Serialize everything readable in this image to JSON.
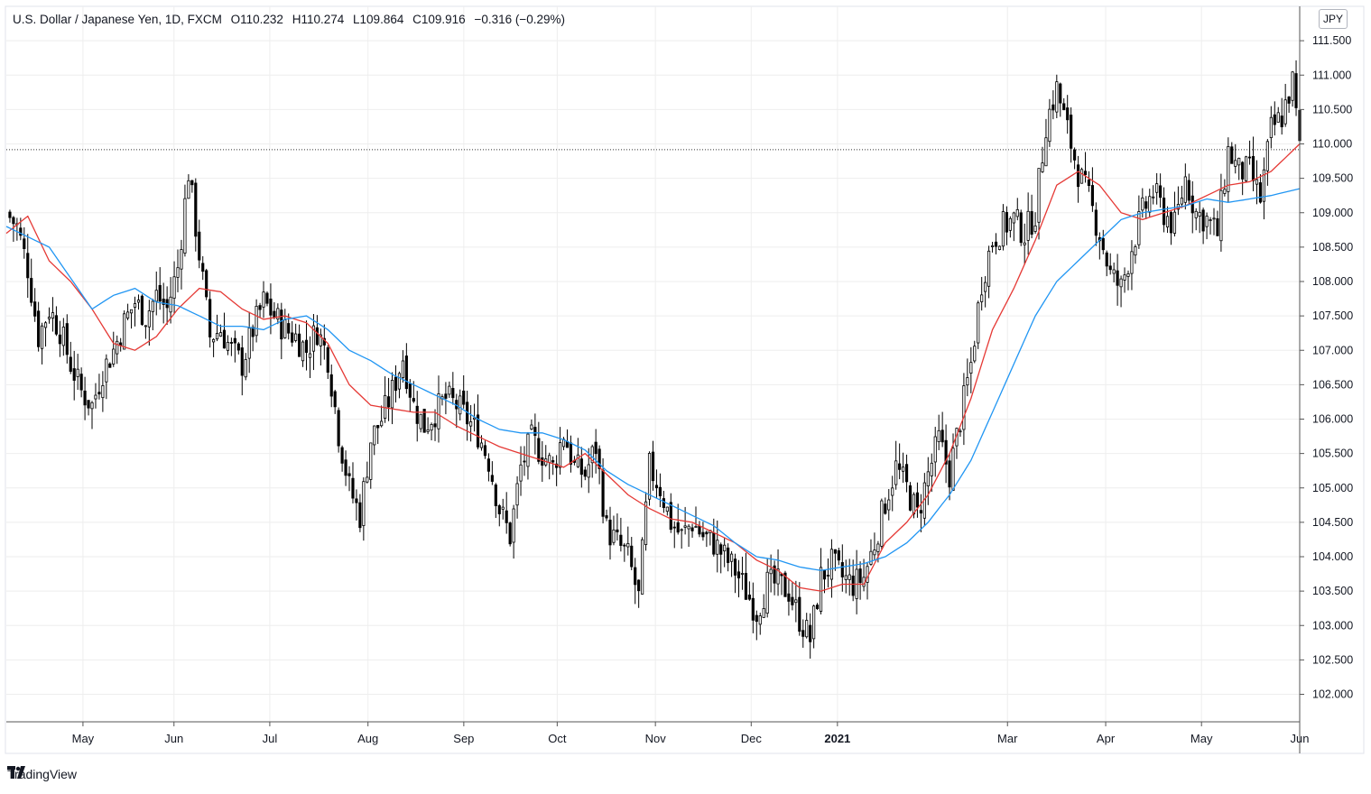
{
  "legend": {
    "symbol": "U.S. Dollar / Japanese Yen, 1D, FXCM",
    "open": "O110.232",
    "high": "H110.274",
    "low": "L109.864",
    "close": "C109.916",
    "change": "−0.316 (−0.29%)"
  },
  "currency_badge": "JPY",
  "brand": "TradingView",
  "colors": {
    "up_candle": "#ffffff",
    "down_candle": "#000000",
    "wick": "#000000",
    "ma_fast": "#e53935",
    "ma_slow": "#2196f3",
    "grid": "#eeeeee",
    "axis": "#555555",
    "last_price_line": "#333333"
  },
  "chart_data": {
    "type": "line",
    "symbol": "USDJPY",
    "interval": "1D",
    "ylim": [
      101.6,
      112.0
    ],
    "y_ticks": [
      "102.000",
      "102.500",
      "103.000",
      "103.500",
      "104.000",
      "104.500",
      "105.000",
      "105.500",
      "106.000",
      "106.500",
      "107.000",
      "107.500",
      "108.000",
      "108.500",
      "109.000",
      "109.500",
      "110.000",
      "110.500",
      "111.000",
      "111.500"
    ],
    "x_ticks": [
      {
        "label": "May",
        "bold": false
      },
      {
        "label": "Jun",
        "bold": false
      },
      {
        "label": "Jul",
        "bold": false
      },
      {
        "label": "Aug",
        "bold": false
      },
      {
        "label": "Sep",
        "bold": false
      },
      {
        "label": "Oct",
        "bold": false
      },
      {
        "label": "Nov",
        "bold": false
      },
      {
        "label": "Dec",
        "bold": false
      },
      {
        "label": "2021",
        "bold": true
      },
      {
        "label": "Mar",
        "bold": false
      },
      {
        "label": "Apr",
        "bold": false
      },
      {
        "label": "May",
        "bold": false
      },
      {
        "label": "Jun",
        "bold": false
      }
    ],
    "last_price": 109.916,
    "grid": true,
    "close_path": [
      [
        0,
        109.0
      ],
      [
        3,
        108.8
      ],
      [
        6,
        108.2
      ],
      [
        9,
        107.2
      ],
      [
        12,
        107.6
      ],
      [
        15,
        107.3
      ],
      [
        18,
        106.8
      ],
      [
        21,
        106.4
      ],
      [
        24,
        106.2
      ],
      [
        27,
        106.7
      ],
      [
        30,
        107.0
      ],
      [
        33,
        107.4
      ],
      [
        36,
        107.7
      ],
      [
        39,
        107.5
      ],
      [
        42,
        107.8
      ],
      [
        45,
        107.6
      ],
      [
        48,
        108.2
      ],
      [
        51,
        109.6
      ],
      [
        54,
        108.4
      ],
      [
        57,
        107.2
      ],
      [
        60,
        107.3
      ],
      [
        63,
        107.0
      ],
      [
        66,
        106.8
      ],
      [
        69,
        107.3
      ],
      [
        72,
        107.7
      ],
      [
        75,
        107.5
      ],
      [
        78,
        107.3
      ],
      [
        81,
        107.2
      ],
      [
        84,
        107.0
      ],
      [
        87,
        107.3
      ],
      [
        90,
        106.9
      ],
      [
        93,
        105.8
      ],
      [
        96,
        105.0
      ],
      [
        99,
        104.6
      ],
      [
        102,
        105.7
      ],
      [
        105,
        106.0
      ],
      [
        108,
        106.4
      ],
      [
        111,
        106.9
      ],
      [
        114,
        106.2
      ],
      [
        117,
        105.9
      ],
      [
        120,
        106.1
      ],
      [
        123,
        106.3
      ],
      [
        126,
        106.2
      ],
      [
        129,
        106.0
      ],
      [
        132,
        105.8
      ],
      [
        135,
        105.4
      ],
      [
        138,
        104.7
      ],
      [
        141,
        104.3
      ],
      [
        144,
        105.3
      ],
      [
        147,
        105.7
      ],
      [
        150,
        105.5
      ],
      [
        153,
        105.3
      ],
      [
        156,
        105.8
      ],
      [
        159,
        105.3
      ],
      [
        162,
        105.2
      ],
      [
        165,
        105.6
      ],
      [
        168,
        104.4
      ],
      [
        171,
        104.2
      ],
      [
        174,
        104.0
      ],
      [
        177,
        103.4
      ],
      [
        180,
        105.3
      ],
      [
        183,
        105.0
      ],
      [
        186,
        104.5
      ],
      [
        189,
        104.3
      ],
      [
        192,
        104.5
      ],
      [
        195,
        104.3
      ],
      [
        198,
        104.2
      ],
      [
        201,
        104.0
      ],
      [
        204,
        103.8
      ],
      [
        207,
        103.5
      ],
      [
        210,
        103.2
      ],
      [
        213,
        103.6
      ],
      [
        216,
        103.6
      ],
      [
        219,
        103.5
      ],
      [
        222,
        103.1
      ],
      [
        225,
        102.8
      ],
      [
        228,
        103.7
      ],
      [
        231,
        103.9
      ],
      [
        234,
        103.7
      ],
      [
        237,
        103.6
      ],
      [
        240,
        103.7
      ],
      [
        243,
        104.2
      ],
      [
        246,
        104.8
      ],
      [
        249,
        105.3
      ],
      [
        252,
        105.0
      ],
      [
        255,
        104.6
      ],
      [
        258,
        105.2
      ],
      [
        261,
        105.7
      ],
      [
        264,
        105.2
      ],
      [
        267,
        106.0
      ],
      [
        270,
        106.8
      ],
      [
        273,
        108.0
      ],
      [
        276,
        108.6
      ],
      [
        279,
        108.8
      ],
      [
        282,
        108.9
      ],
      [
        285,
        108.7
      ],
      [
        288,
        109.0
      ],
      [
        291,
        110.3
      ],
      [
        294,
        110.8
      ],
      [
        297,
        110.2
      ],
      [
        300,
        109.6
      ],
      [
        303,
        109.2
      ],
      [
        306,
        108.7
      ],
      [
        309,
        108.1
      ],
      [
        312,
        107.9
      ],
      [
        315,
        108.5
      ],
      [
        318,
        109.0
      ],
      [
        321,
        109.3
      ],
      [
        324,
        109.0
      ],
      [
        327,
        108.8
      ],
      [
        330,
        109.5
      ],
      [
        333,
        109.0
      ],
      [
        336,
        108.9
      ],
      [
        339,
        108.7
      ],
      [
        342,
        109.9
      ],
      [
        345,
        109.6
      ],
      [
        348,
        109.6
      ],
      [
        351,
        109.2
      ],
      [
        354,
        110.2
      ],
      [
        357,
        110.4
      ],
      [
        360,
        110.9
      ],
      [
        362,
        109.92
      ]
    ],
    "series": [
      {
        "name": "",
        "color": "#e53935",
        "values": [
          [
            0,
            108.7
          ],
          [
            6,
            108.95
          ],
          [
            12,
            108.3
          ],
          [
            18,
            108.0
          ],
          [
            24,
            107.6
          ],
          [
            30,
            107.1
          ],
          [
            36,
            107.0
          ],
          [
            42,
            107.2
          ],
          [
            48,
            107.6
          ],
          [
            54,
            107.9
          ],
          [
            60,
            107.85
          ],
          [
            66,
            107.6
          ],
          [
            72,
            107.45
          ],
          [
            78,
            107.5
          ],
          [
            84,
            107.4
          ],
          [
            90,
            107.1
          ],
          [
            96,
            106.5
          ],
          [
            102,
            106.2
          ],
          [
            108,
            106.15
          ],
          [
            114,
            106.1
          ],
          [
            120,
            106.1
          ],
          [
            126,
            105.9
          ],
          [
            132,
            105.75
          ],
          [
            138,
            105.6
          ],
          [
            144,
            105.5
          ],
          [
            150,
            105.4
          ],
          [
            156,
            105.3
          ],
          [
            162,
            105.5
          ],
          [
            168,
            105.2
          ],
          [
            174,
            104.9
          ],
          [
            180,
            104.7
          ],
          [
            186,
            104.55
          ],
          [
            192,
            104.5
          ],
          [
            198,
            104.35
          ],
          [
            204,
            104.2
          ],
          [
            210,
            103.95
          ],
          [
            216,
            103.8
          ],
          [
            222,
            103.55
          ],
          [
            228,
            103.5
          ],
          [
            234,
            103.6
          ],
          [
            240,
            103.6
          ],
          [
            246,
            104.2
          ],
          [
            252,
            104.5
          ],
          [
            258,
            104.9
          ],
          [
            264,
            105.5
          ],
          [
            270,
            106.3
          ],
          [
            276,
            107.3
          ],
          [
            282,
            107.9
          ],
          [
            288,
            108.6
          ],
          [
            294,
            109.4
          ],
          [
            300,
            109.6
          ],
          [
            306,
            109.4
          ],
          [
            312,
            109.0
          ],
          [
            318,
            108.9
          ],
          [
            324,
            109.0
          ],
          [
            330,
            109.1
          ],
          [
            336,
            109.25
          ],
          [
            342,
            109.4
          ],
          [
            348,
            109.45
          ],
          [
            354,
            109.6
          ],
          [
            362,
            110.0
          ]
        ]
      },
      {
        "name": "",
        "color": "#2196f3",
        "values": [
          [
            0,
            108.8
          ],
          [
            12,
            108.5
          ],
          [
            24,
            107.6
          ],
          [
            30,
            107.8
          ],
          [
            36,
            107.9
          ],
          [
            42,
            107.7
          ],
          [
            48,
            107.65
          ],
          [
            54,
            107.5
          ],
          [
            60,
            107.35
          ],
          [
            66,
            107.35
          ],
          [
            72,
            107.3
          ],
          [
            78,
            107.45
          ],
          [
            84,
            107.5
          ],
          [
            90,
            107.3
          ],
          [
            96,
            107.0
          ],
          [
            102,
            106.85
          ],
          [
            108,
            106.65
          ],
          [
            114,
            106.5
          ],
          [
            120,
            106.35
          ],
          [
            126,
            106.2
          ],
          [
            132,
            106.0
          ],
          [
            138,
            105.85
          ],
          [
            144,
            105.8
          ],
          [
            150,
            105.8
          ],
          [
            156,
            105.7
          ],
          [
            162,
            105.55
          ],
          [
            168,
            105.25
          ],
          [
            174,
            105.05
          ],
          [
            180,
            104.9
          ],
          [
            186,
            104.75
          ],
          [
            192,
            104.6
          ],
          [
            198,
            104.45
          ],
          [
            204,
            104.2
          ],
          [
            210,
            104.0
          ],
          [
            216,
            103.95
          ],
          [
            222,
            103.85
          ],
          [
            228,
            103.8
          ],
          [
            234,
            103.85
          ],
          [
            240,
            103.9
          ],
          [
            246,
            104.0
          ],
          [
            252,
            104.2
          ],
          [
            258,
            104.5
          ],
          [
            264,
            104.9
          ],
          [
            270,
            105.4
          ],
          [
            276,
            106.1
          ],
          [
            282,
            106.8
          ],
          [
            288,
            107.5
          ],
          [
            294,
            108.0
          ],
          [
            300,
            108.3
          ],
          [
            306,
            108.6
          ],
          [
            312,
            108.9
          ],
          [
            318,
            109.0
          ],
          [
            324,
            109.05
          ],
          [
            330,
            109.1
          ],
          [
            336,
            109.2
          ],
          [
            342,
            109.15
          ],
          [
            348,
            109.2
          ],
          [
            354,
            109.25
          ],
          [
            362,
            109.35
          ]
        ]
      }
    ]
  }
}
